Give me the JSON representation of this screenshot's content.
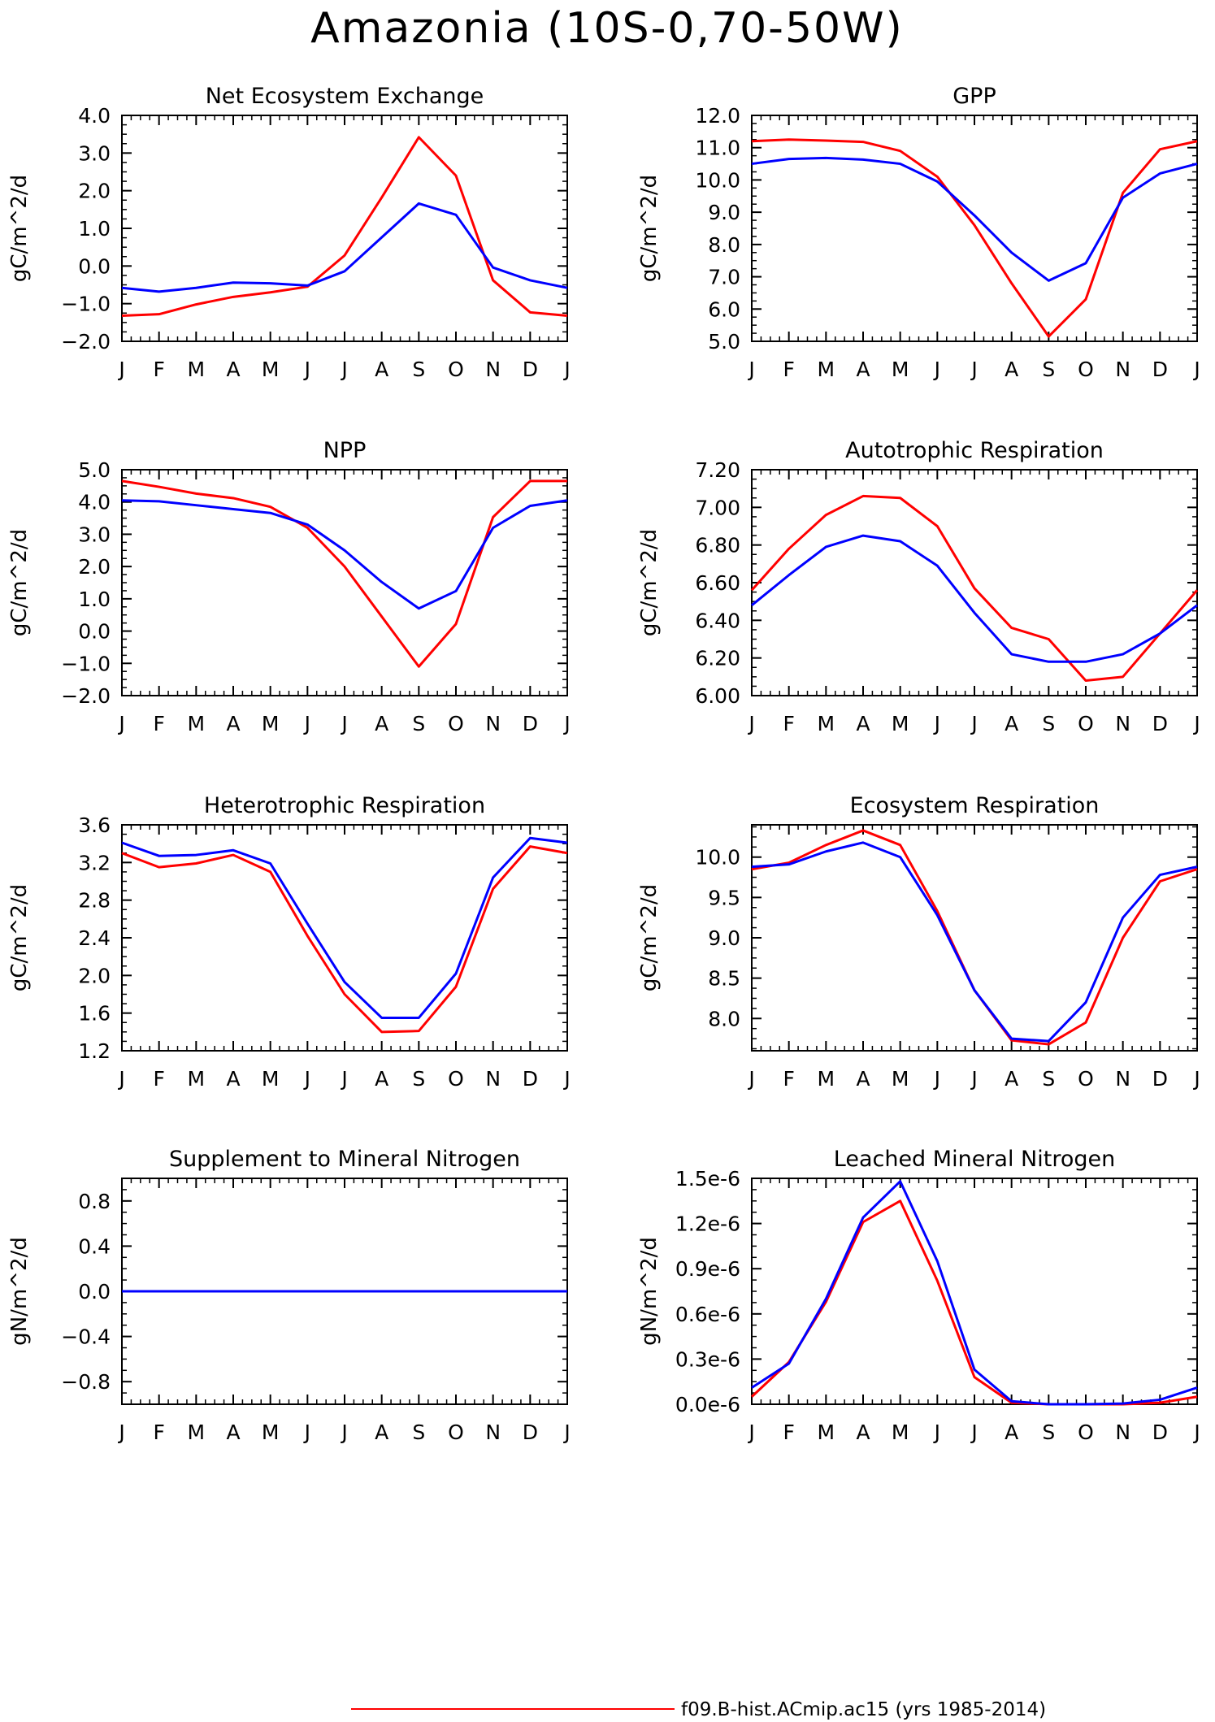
{
  "title": "Amazonia (10S-0,70-50W)",
  "colors": {
    "series_red": "#ff0000",
    "series_blue": "#0000ff",
    "axes": "#000000"
  },
  "legend": {
    "entries": [
      {
        "label": "f09.B-hist.ACmip.ac15 (yrs 1985-2014)",
        "color": "#ff0000"
      }
    ]
  },
  "chart_data": [
    {
      "type": "line",
      "title": "Net Ecosystem Exchange",
      "ylabel": "gC/m^2/d",
      "categories": [
        "J",
        "F",
        "M",
        "A",
        "M",
        "J",
        "J",
        "A",
        "S",
        "O",
        "N",
        "D",
        "J"
      ],
      "ylim": [
        -2.0,
        4.0
      ],
      "yticks": [
        "-2.0",
        "-1.0",
        "0.0",
        "1.0",
        "2.0",
        "3.0",
        "4.0"
      ],
      "series": [
        {
          "color": "#ff0000",
          "values": [
            -1.32,
            -1.28,
            -1.02,
            -0.82,
            -0.7,
            -0.55,
            0.28,
            1.82,
            3.42,
            2.4,
            -0.38,
            -1.23,
            -1.32
          ]
        },
        {
          "color": "#0000ff",
          "values": [
            -0.58,
            -0.68,
            -0.58,
            -0.44,
            -0.46,
            -0.52,
            -0.14,
            0.76,
            1.66,
            1.36,
            -0.04,
            -0.38,
            -0.58
          ]
        }
      ]
    },
    {
      "type": "line",
      "title": "GPP",
      "ylabel": "gC/m^2/d",
      "categories": [
        "J",
        "F",
        "M",
        "A",
        "M",
        "J",
        "J",
        "A",
        "S",
        "O",
        "N",
        "D",
        "J"
      ],
      "ylim": [
        5.0,
        12.0
      ],
      "yticks": [
        "5.0",
        "6.0",
        "7.0",
        "8.0",
        "9.0",
        "10.0",
        "11.0",
        "12.0"
      ],
      "series": [
        {
          "color": "#ff0000",
          "values": [
            11.2,
            11.25,
            11.22,
            11.18,
            10.9,
            10.1,
            8.6,
            6.8,
            5.15,
            6.3,
            9.6,
            10.95,
            11.2
          ]
        },
        {
          "color": "#0000ff",
          "values": [
            10.5,
            10.65,
            10.68,
            10.63,
            10.5,
            9.95,
            8.9,
            7.75,
            6.88,
            7.42,
            9.45,
            10.2,
            10.5
          ]
        }
      ]
    },
    {
      "type": "line",
      "title": "NPP",
      "ylabel": "gC/m^2/d",
      "categories": [
        "J",
        "F",
        "M",
        "A",
        "M",
        "J",
        "J",
        "A",
        "S",
        "O",
        "N",
        "D",
        "J"
      ],
      "ylim": [
        -2.0,
        5.0
      ],
      "yticks": [
        "-2.0",
        "-1.0",
        "0.0",
        "1.0",
        "2.0",
        "3.0",
        "4.0",
        "5.0"
      ],
      "series": [
        {
          "color": "#ff0000",
          "values": [
            4.65,
            4.47,
            4.26,
            4.12,
            3.85,
            3.2,
            2.0,
            0.45,
            -1.1,
            0.22,
            3.53,
            4.65,
            4.65
          ]
        },
        {
          "color": "#0000ff",
          "values": [
            4.05,
            4.02,
            3.9,
            3.78,
            3.66,
            3.3,
            2.5,
            1.52,
            0.7,
            1.24,
            3.2,
            3.88,
            4.05
          ]
        }
      ]
    },
    {
      "type": "line",
      "title": "Autotrophic Respiration",
      "ylabel": "gC/m^2/d",
      "categories": [
        "J",
        "F",
        "M",
        "A",
        "M",
        "J",
        "J",
        "A",
        "S",
        "O",
        "N",
        "D",
        "J"
      ],
      "ylim": [
        6.0,
        7.2
      ],
      "yticks": [
        "6.00",
        "6.20",
        "6.40",
        "6.60",
        "6.80",
        "7.00",
        "7.20"
      ],
      "series": [
        {
          "color": "#ff0000",
          "values": [
            6.56,
            6.78,
            6.96,
            7.06,
            7.05,
            6.9,
            6.57,
            6.36,
            6.3,
            6.08,
            6.1,
            6.33,
            6.56
          ]
        },
        {
          "color": "#0000ff",
          "values": [
            6.48,
            6.64,
            6.79,
            6.85,
            6.82,
            6.69,
            6.44,
            6.22,
            6.18,
            6.18,
            6.22,
            6.33,
            6.48
          ]
        }
      ]
    },
    {
      "type": "line",
      "title": "Heterotrophic Respiration",
      "ylabel": "gC/m^2/d",
      "categories": [
        "J",
        "F",
        "M",
        "A",
        "M",
        "J",
        "J",
        "A",
        "S",
        "O",
        "N",
        "D",
        "J"
      ],
      "ylim": [
        1.2,
        3.6
      ],
      "yticks": [
        "1.2",
        "1.6",
        "2.0",
        "2.4",
        "2.8",
        "3.2",
        "3.6"
      ],
      "series": [
        {
          "color": "#ff0000",
          "values": [
            3.3,
            3.15,
            3.19,
            3.28,
            3.1,
            2.42,
            1.8,
            1.4,
            1.41,
            1.88,
            2.92,
            3.37,
            3.3
          ]
        },
        {
          "color": "#0000ff",
          "values": [
            3.41,
            3.27,
            3.28,
            3.33,
            3.19,
            2.55,
            1.93,
            1.55,
            1.55,
            2.02,
            3.04,
            3.46,
            3.41
          ]
        }
      ]
    },
    {
      "type": "line",
      "title": "Ecosystem Respiration",
      "ylabel": "gC/m^2/d",
      "categories": [
        "J",
        "F",
        "M",
        "A",
        "M",
        "J",
        "J",
        "A",
        "S",
        "O",
        "N",
        "D",
        "J"
      ],
      "ylim": [
        7.6,
        10.4
      ],
      "yticks": [
        "8.0",
        "8.5",
        "9.0",
        "9.5",
        "10.0"
      ],
      "series": [
        {
          "color": "#ff0000",
          "values": [
            9.85,
            9.93,
            10.15,
            10.33,
            10.15,
            9.33,
            8.35,
            7.73,
            7.68,
            7.95,
            9.0,
            9.7,
            9.85
          ]
        },
        {
          "color": "#0000ff",
          "values": [
            9.88,
            9.91,
            10.07,
            10.18,
            10.0,
            9.28,
            8.35,
            7.75,
            7.72,
            8.2,
            9.25,
            9.78,
            9.88
          ]
        }
      ]
    },
    {
      "type": "line",
      "title": "Supplement to Mineral Nitrogen",
      "ylabel": "gN/m^2/d",
      "categories": [
        "J",
        "F",
        "M",
        "A",
        "M",
        "J",
        "J",
        "A",
        "S",
        "O",
        "N",
        "D",
        "J"
      ],
      "ylim": [
        -1.0,
        1.0
      ],
      "yticks": [
        "-0.8",
        "-0.4",
        "0.0",
        "0.4",
        "0.8"
      ],
      "series": [
        {
          "color": "#ff0000",
          "values": [
            0,
            0,
            0,
            0,
            0,
            0,
            0,
            0,
            0,
            0,
            0,
            0,
            0
          ]
        },
        {
          "color": "#0000ff",
          "values": [
            0,
            0,
            0,
            0,
            0,
            0,
            0,
            0,
            0,
            0,
            0,
            0,
            0
          ]
        }
      ]
    },
    {
      "type": "line",
      "title": "Leached Mineral Nitrogen",
      "ylabel": "gN/m^2/d",
      "categories": [
        "J",
        "F",
        "M",
        "A",
        "M",
        "J",
        "J",
        "A",
        "S",
        "O",
        "N",
        "D",
        "J"
      ],
      "ylim": [
        0,
        1.5e-06
      ],
      "yticks": [
        "0.0e-6",
        "0.3e-6",
        "0.6e-6",
        "0.9e-6",
        "1.2e-6",
        "1.5e-6"
      ],
      "series": [
        {
          "color": "#ff0000",
          "values": [
            5e-08,
            2.8e-07,
            6.8e-07,
            1.21e-06,
            1.35e-06,
            8.2e-07,
            1.8e-07,
            1e-08,
            0.0,
            0.0,
            0.0,
            1e-08,
            5e-08
          ]
        },
        {
          "color": "#0000ff",
          "values": [
            1.1e-07,
            2.7e-07,
            7e-07,
            1.24e-06,
            1.48e-06,
            9.5e-07,
            2.3e-07,
            2e-08,
            0.0,
            0.0,
            5e-09,
            3e-08,
            1.1e-07
          ]
        }
      ]
    }
  ]
}
